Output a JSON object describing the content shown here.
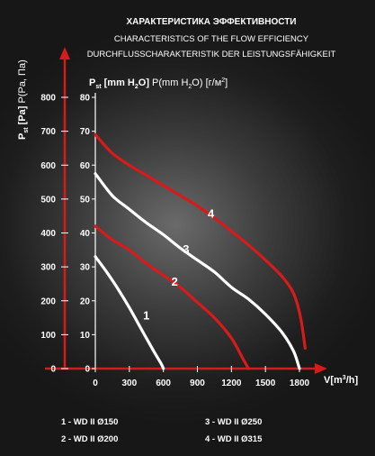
{
  "chart_data": {
    "type": "line",
    "title": "ХАРАКТЕРИСТИКА ЭФФЕКТИВНОСТИ",
    "subtitle_1": "CHARACTERISTICS OF THE FLOW EFFICIENCY",
    "subtitle_2": "DURCHFLUSSCHARAKTERISTIK DER LEISTUNGSFÄHIGKEIT",
    "ylabel_pa": "Pst [Pa] P(Pa, Па)",
    "ylabel_mm": "Pst [mm H2O] P(mm H2O) [г/м²]",
    "xlabel": "V[m³/h]",
    "xlim": [
      0,
      1950
    ],
    "ylim_pa": [
      0,
      800
    ],
    "ylim_mm": [
      0,
      80
    ],
    "x_ticks": [
      0,
      300,
      600,
      900,
      1200,
      1500,
      1800
    ],
    "y_ticks_pa": [
      0,
      100,
      200,
      300,
      400,
      500,
      600,
      700,
      800
    ],
    "y_ticks_mm": [
      0,
      10,
      20,
      30,
      40,
      50,
      60,
      70,
      80
    ],
    "colors": {
      "red": "#d71a1a",
      "white": "#ffffff"
    },
    "series": [
      {
        "name": "1",
        "color": "#ffffff",
        "label_at": [
          450,
          145
        ],
        "x": [
          0,
          100,
          200,
          300,
          400,
          500,
          580,
          600
        ],
        "y": [
          330,
          285,
          235,
          180,
          120,
          60,
          15,
          0
        ]
      },
      {
        "name": "2",
        "color": "#d71a1a",
        "label_at": [
          700,
          245
        ],
        "x": [
          0,
          150,
          300,
          450,
          600,
          750,
          900,
          1050,
          1200,
          1300,
          1350
        ],
        "y": [
          420,
          380,
          350,
          310,
          275,
          240,
          195,
          150,
          90,
          30,
          0
        ]
      },
      {
        "name": "3",
        "color": "#ffffff",
        "label_at": [
          800,
          340
        ],
        "x": [
          0,
          150,
          300,
          450,
          600,
          750,
          900,
          1050,
          1200,
          1350,
          1500,
          1650,
          1750,
          1800
        ],
        "y": [
          575,
          510,
          470,
          430,
          395,
          355,
          320,
          285,
          240,
          205,
          160,
          105,
          50,
          0
        ]
      },
      {
        "name": "4",
        "color": "#d71a1a",
        "label_at": [
          1020,
          445
        ],
        "x": [
          0,
          150,
          300,
          450,
          600,
          750,
          900,
          1050,
          1200,
          1350,
          1500,
          1650,
          1750,
          1810,
          1850
        ],
        "y": [
          690,
          635,
          600,
          570,
          540,
          510,
          480,
          445,
          405,
          365,
          320,
          270,
          220,
          150,
          60
        ]
      }
    ],
    "legend": [
      "1 - WD II Ø150",
      "2 - WD II Ø200",
      "3 - WD II Ø250",
      "4 - WD II Ø315"
    ]
  }
}
